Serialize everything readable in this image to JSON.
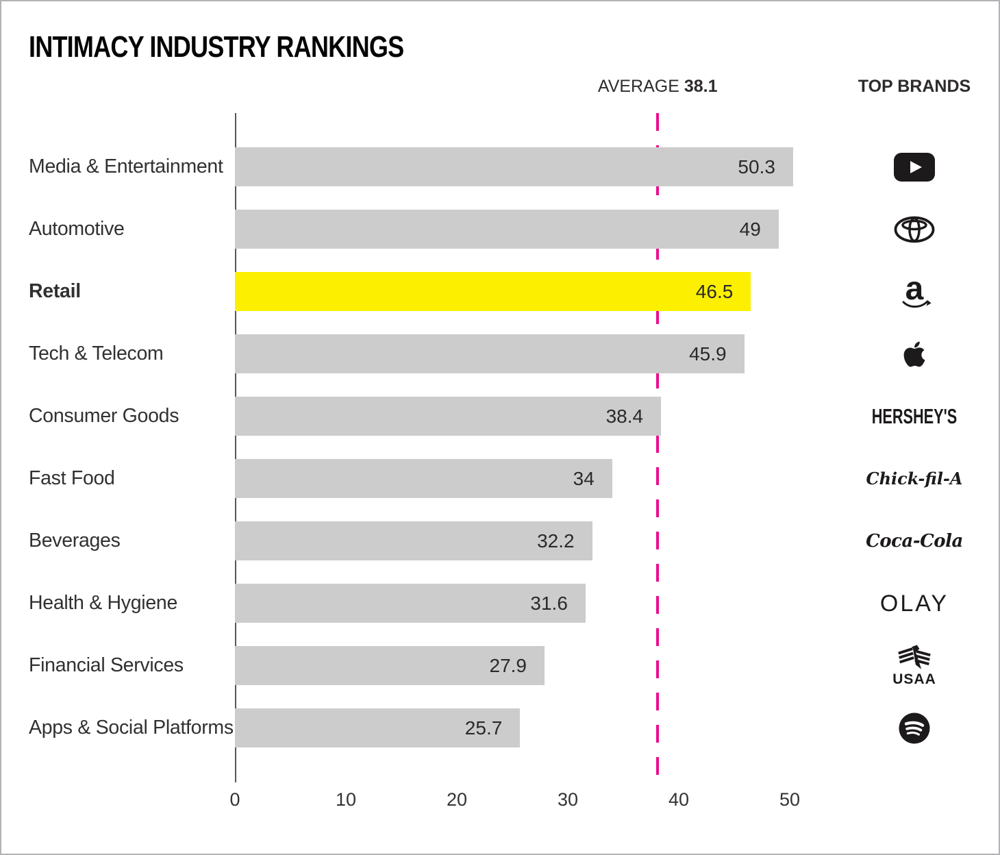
{
  "title": "INTIMACY INDUSTRY RANKINGS",
  "header": {
    "average_label": "AVERAGE",
    "average_value": "38.1",
    "top_brands_label": "TOP BRANDS"
  },
  "chart_data": {
    "type": "bar",
    "orientation": "horizontal",
    "title": "INTIMACY INDUSTRY RANKINGS",
    "categories": [
      "Media & Entertainment",
      "Automotive",
      "Retail",
      "Tech & Telecom",
      "Consumer Goods",
      "Fast Food",
      "Beverages",
      "Health & Hygiene",
      "Financial Services",
      "Apps & Social Platforms"
    ],
    "values": [
      50.3,
      49,
      46.5,
      45.9,
      38.4,
      34,
      32.2,
      31.6,
      27.9,
      25.7
    ],
    "value_labels": [
      "50.3",
      "49",
      "46.5",
      "45.9",
      "38.4",
      "34",
      "32.2",
      "31.6",
      "27.9",
      "25.7"
    ],
    "emphasis_category": "Retail",
    "highlight_category": "Retail",
    "average": 38.1,
    "x_ticks": [
      0,
      10,
      20,
      30,
      40,
      50
    ],
    "xlim": [
      0,
      50.6
    ],
    "grid": false,
    "legend": null,
    "colors": {
      "bar": "#cccccc",
      "highlight": "#fcf000",
      "average_line": "#ec0c8e",
      "axis": "#55565a",
      "text": "#2e2b2c",
      "logo": "#1d1a1b"
    },
    "top_brands": [
      {
        "brand": "YouTube",
        "icon": "youtube-logo"
      },
      {
        "brand": "Toyota",
        "icon": "toyota-logo"
      },
      {
        "brand": "Amazon",
        "icon": "amazon-logo",
        "wordmark": "a"
      },
      {
        "brand": "Apple",
        "icon": "apple-logo"
      },
      {
        "brand": "Hershey's",
        "icon": "hersheys-wordmark",
        "wordmark": "HERSHEY'S"
      },
      {
        "brand": "Chick-fil-A",
        "icon": "chick-fil-a-wordmark",
        "wordmark": "Chick-fil-A"
      },
      {
        "brand": "Coca-Cola",
        "icon": "coca-cola-wordmark",
        "wordmark": "Coca-Cola"
      },
      {
        "brand": "Olay",
        "icon": "olay-wordmark",
        "wordmark": "OLAY"
      },
      {
        "brand": "USAA",
        "icon": "usaa-logo",
        "wordmark": "USAA"
      },
      {
        "brand": "Spotify",
        "icon": "spotify-logo"
      }
    ]
  }
}
